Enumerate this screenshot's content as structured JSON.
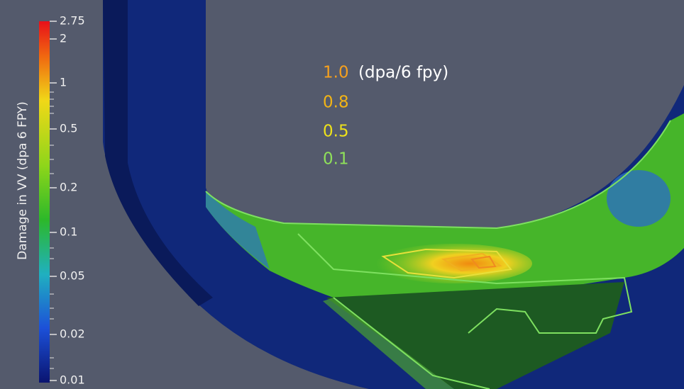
{
  "colorbar": {
    "title": "Damage in VV (dpa 6 FPY)",
    "ticks": [
      "2.75",
      "2",
      "1",
      "0.5",
      "0.2",
      "0.1",
      "0.05",
      "0.02",
      "0.01"
    ]
  },
  "contour_legend": {
    "entries": [
      {
        "label": "1.0",
        "color": "#f5a01e"
      },
      {
        "label": "0.8",
        "color": "#f2b415"
      },
      {
        "label": "0.5",
        "color": "#eee21a"
      },
      {
        "label": "0.1",
        "color": "#8fe05a"
      }
    ],
    "unit": "(dpa/6 fpy)"
  }
}
